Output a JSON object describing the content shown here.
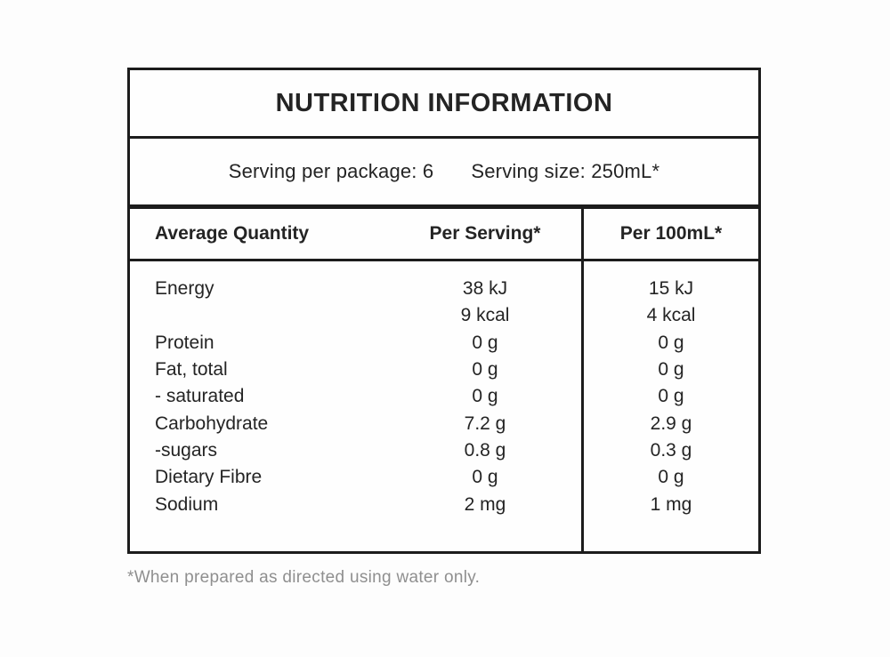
{
  "table": {
    "title": "NUTRITION INFORMATION",
    "serving_per_package": "Serving per package: 6",
    "serving_size": "Serving size: 250mL*",
    "columns": [
      "Average Quantity",
      "Per Serving*",
      "Per 100mL*"
    ],
    "rows": [
      {
        "label": "Energy",
        "per_serving": "38 kJ",
        "per_100ml": "15 kJ"
      },
      {
        "label": "",
        "per_serving": "9 kcal",
        "per_100ml": "4 kcal"
      },
      {
        "label": "Protein",
        "per_serving": "0 g",
        "per_100ml": "0 g"
      },
      {
        "label": "Fat, total",
        "per_serving": "0 g",
        "per_100ml": "0 g"
      },
      {
        "label": "- saturated",
        "per_serving": "0 g",
        "per_100ml": "0 g"
      },
      {
        "label": "Carbohydrate",
        "per_serving": "7.2 g",
        "per_100ml": "2.9 g"
      },
      {
        "label": "-sugars",
        "per_serving": "0.8 g",
        "per_100ml": "0.3 g"
      },
      {
        "label": "Dietary Fibre",
        "per_serving": "0 g",
        "per_100ml": "0 g"
      },
      {
        "label": "Sodium",
        "per_serving": "2 mg",
        "per_100ml": "1 mg"
      }
    ],
    "footnote": "*When prepared as directed using water only."
  },
  "colors": {
    "background": "#fdfdfd",
    "border": "#1c1c1c",
    "text": "#242424",
    "footnote_text": "#8f8f8f"
  }
}
